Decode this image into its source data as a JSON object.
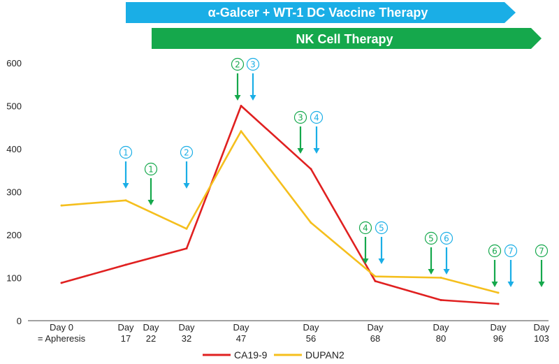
{
  "banners": [
    {
      "label": "α-Galcer + WT-1 DC Vaccine Therapy",
      "color": "#1aaee6"
    },
    {
      "label": "NK Cell Therapy",
      "color": "#15a84c"
    }
  ],
  "chart_data": {
    "type": "line",
    "x_ticks": [
      {
        "day": 0,
        "lines": [
          "Day 0",
          "= Apheresis"
        ]
      },
      {
        "day": 17,
        "lines": [
          "Day",
          "17"
        ]
      },
      {
        "day": 22,
        "lines": [
          "Day",
          "22"
        ]
      },
      {
        "day": 32,
        "lines": [
          "Day",
          "32"
        ]
      },
      {
        "day": 47,
        "lines": [
          "Day",
          "47"
        ]
      },
      {
        "day": 56,
        "lines": [
          "Day",
          "56"
        ]
      },
      {
        "day": 68,
        "lines": [
          "Day",
          "68"
        ]
      },
      {
        "day": 80,
        "lines": [
          "Day",
          "80"
        ]
      },
      {
        "day": 96,
        "lines": [
          "Day",
          "96"
        ]
      },
      {
        "day": 103,
        "lines": [
          "Day",
          "103"
        ]
      }
    ],
    "y_ticks": [
      0,
      100,
      200,
      300,
      400,
      500,
      600
    ],
    "ylim": [
      0,
      600
    ],
    "grid": false,
    "legend_position": "bottom-center",
    "series": [
      {
        "name": "CA19-9",
        "color": "#e02020",
        "x": [
          0,
          17,
          32,
          47,
          56,
          68,
          80,
          96
        ],
        "y": [
          88,
          130,
          168,
          500,
          353,
          92,
          48,
          39
        ]
      },
      {
        "name": "DUPAN2",
        "color": "#f5bf1d",
        "x": [
          0,
          17,
          32,
          47,
          56,
          68,
          80,
          96
        ],
        "y": [
          268,
          280,
          214,
          441,
          228,
          103,
          100,
          65
        ]
      }
    ],
    "markers": [
      {
        "label": "①",
        "therapy": "vaccine",
        "day": 17
      },
      {
        "label": "①",
        "therapy": "nk",
        "day": 22
      },
      {
        "label": "②",
        "therapy": "vaccine",
        "day": 32
      },
      {
        "label": "②",
        "therapy": "nk",
        "day": 47
      },
      {
        "label": "③",
        "therapy": "vaccine",
        "day": 47
      },
      {
        "label": "③",
        "therapy": "nk",
        "day": 56
      },
      {
        "label": "④",
        "therapy": "vaccine",
        "day": 56
      },
      {
        "label": "④",
        "therapy": "nk",
        "day": 68
      },
      {
        "label": "⑤",
        "therapy": "vaccine",
        "day": 68
      },
      {
        "label": "⑤",
        "therapy": "nk",
        "day": 80
      },
      {
        "label": "⑥",
        "therapy": "vaccine",
        "day": 80
      },
      {
        "label": "⑥",
        "therapy": "nk",
        "day": 96
      },
      {
        "label": "⑦",
        "therapy": "vaccine",
        "day": 96
      },
      {
        "label": "⑦",
        "therapy": "nk",
        "day": 103
      }
    ]
  },
  "colors": {
    "vaccine": "#1aaee6",
    "nk": "#15a84c",
    "axis": "#444444"
  }
}
